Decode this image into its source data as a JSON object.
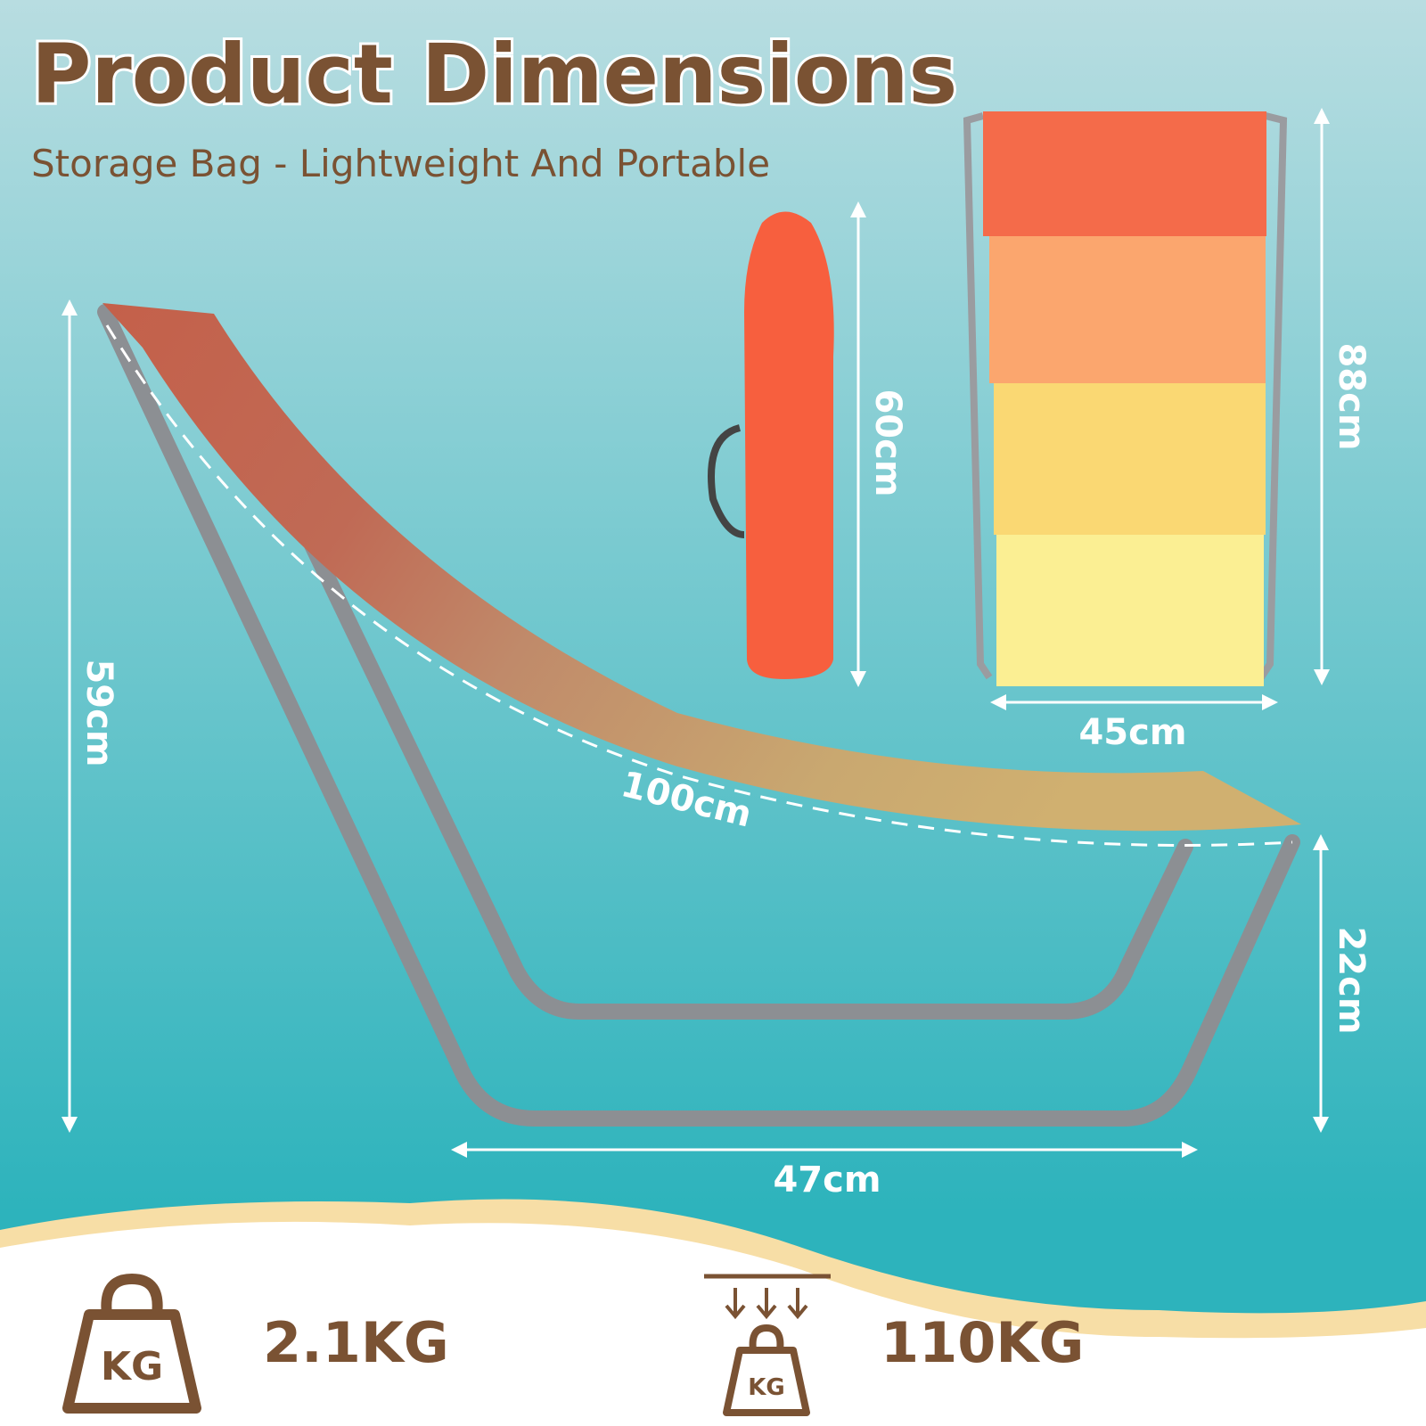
{
  "header": {
    "title": "Product Dimensions",
    "subtitle": "Storage Bag - Lightweight And Portable"
  },
  "dimensions": {
    "bag_height": "60cm",
    "seat_height": "88cm",
    "seat_width": "45cm",
    "frame_height": "59cm",
    "length": "100cm",
    "base_width": "47cm",
    "leg_height": "22cm"
  },
  "specs": {
    "weight": "2.1KG",
    "weight_icon": "KG",
    "capacity": "110KG",
    "capacity_icon": "KG"
  }
}
